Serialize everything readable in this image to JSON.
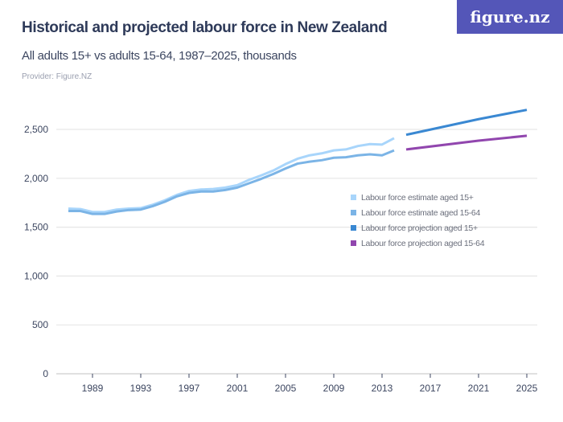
{
  "header": {
    "title": "Historical and projected labour force in New Zealand",
    "subtitle": "All adults 15+ vs adults 15-64, 1987–2025, thousands",
    "provider": "Provider: Figure.NZ",
    "logo": "figure.nz"
  },
  "chart_data": {
    "type": "line",
    "title": "Historical and projected labour force in New Zealand",
    "ylim": [
      0,
      2700
    ],
    "yticks": [
      0,
      500,
      1000,
      1500,
      2000,
      2500
    ],
    "ytick_labels": [
      "0",
      "500",
      "1,000",
      "1,500",
      "2,000",
      "2,500"
    ],
    "xlim": [
      1986,
      2025
    ],
    "xticks": [
      1989,
      1993,
      1997,
      2001,
      2005,
      2009,
      2013,
      2017,
      2021,
      2025
    ],
    "grid": true,
    "legend_position": "right-middle",
    "series": [
      {
        "name": "Labour force estimate aged  15+",
        "color": "#a8d5fb",
        "x": [
          1987,
          1988,
          1989,
          1990,
          1991,
          1992,
          1993,
          1994,
          1995,
          1996,
          1997,
          1998,
          1999,
          2000,
          2001,
          2002,
          2003,
          2004,
          2005,
          2006,
          2007,
          2008,
          2009,
          2010,
          2011,
          2012,
          2013,
          2014
        ],
        "y": [
          1690,
          1685,
          1655,
          1655,
          1680,
          1690,
          1695,
          1730,
          1775,
          1830,
          1870,
          1885,
          1890,
          1905,
          1930,
          1985,
          2030,
          2080,
          2145,
          2200,
          2235,
          2255,
          2285,
          2295,
          2330,
          2350,
          2345,
          2410
        ]
      },
      {
        "name": "Labour force estimate aged 15-64",
        "color": "#7bb4e6",
        "x": [
          1987,
          1988,
          1989,
          1990,
          1991,
          1992,
          1993,
          1994,
          1995,
          1996,
          1997,
          1998,
          1999,
          2000,
          2001,
          2002,
          2003,
          2004,
          2005,
          2006,
          2007,
          2008,
          2009,
          2010,
          2011,
          2012,
          2013,
          2014
        ],
        "y": [
          1665,
          1665,
          1635,
          1635,
          1660,
          1675,
          1680,
          1715,
          1760,
          1815,
          1850,
          1865,
          1865,
          1880,
          1905,
          1950,
          1995,
          2045,
          2100,
          2150,
          2170,
          2185,
          2210,
          2215,
          2235,
          2245,
          2235,
          2285
        ]
      },
      {
        "name": "Labour force projection aged 15+",
        "color": "#3a88d2",
        "x": [
          2015,
          2021,
          2025
        ],
        "y": [
          2445,
          2605,
          2700
        ]
      },
      {
        "name": "Labour force projection aged 15-64",
        "color": "#9146ae",
        "x": [
          2015,
          2021,
          2025
        ],
        "y": [
          2295,
          2385,
          2435
        ]
      }
    ]
  }
}
